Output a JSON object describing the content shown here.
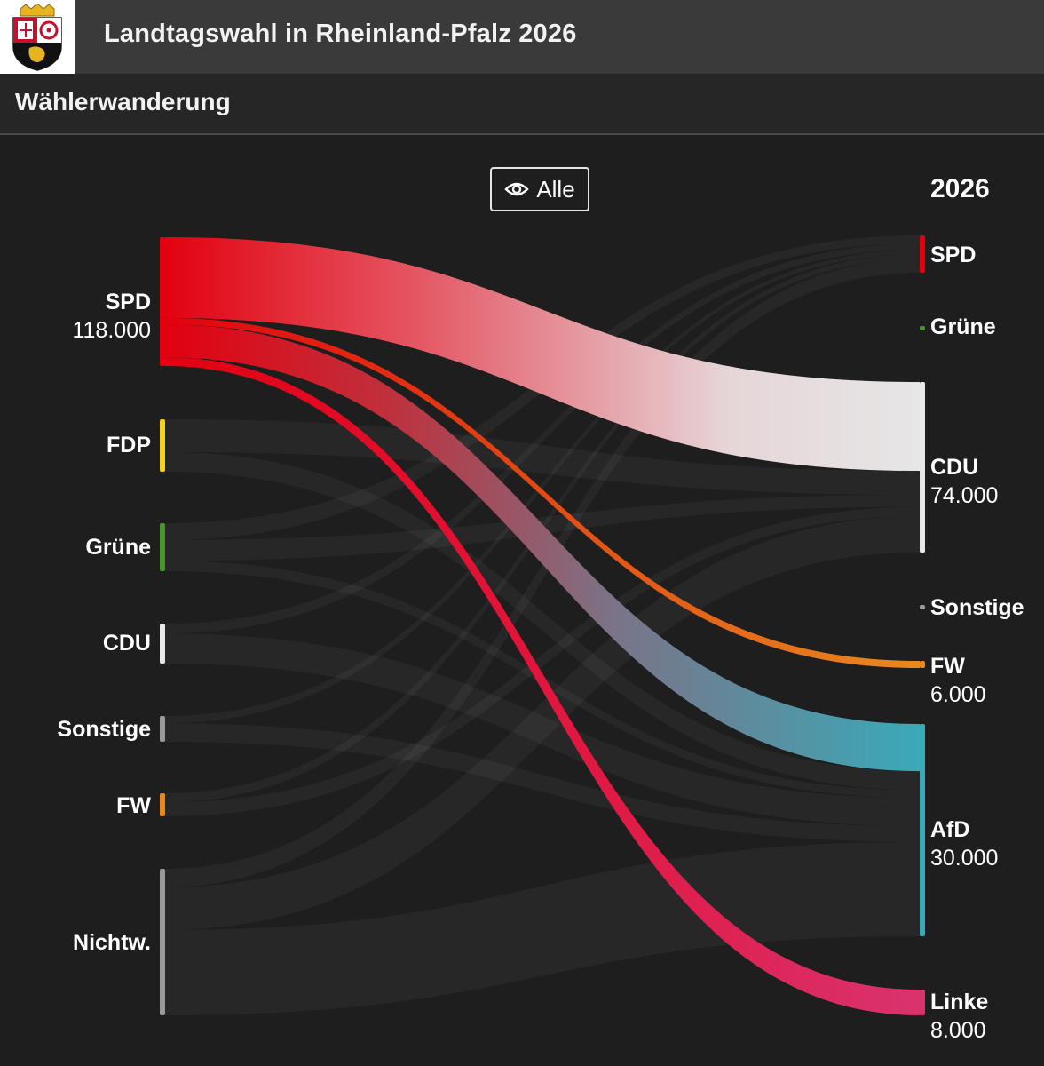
{
  "header": {
    "title": "Landtagswahl in Rheinland-Pfalz 2026",
    "crest_icon": "rheinland-pfalz-coat-of-arms"
  },
  "section": {
    "title": "Wählerwanderung"
  },
  "filter": {
    "label": "Alle",
    "icon": "eye-icon"
  },
  "target_year": "2026",
  "chart_data": {
    "type": "sankey",
    "title": "Wählerwanderung",
    "highlighted_source": "SPD",
    "sources": [
      {
        "name": "SPD",
        "value": 118000,
        "value_label": "118.000",
        "color": "#e3000f"
      },
      {
        "name": "FDP",
        "value": 48000,
        "value_label": "",
        "color": "#f5d21b"
      },
      {
        "name": "Grüne",
        "value": 45000,
        "value_label": "",
        "color": "#46962b"
      },
      {
        "name": "CDU",
        "value": 38000,
        "value_label": "",
        "color": "#e8e8e8"
      },
      {
        "name": "Sonstige",
        "value": 24000,
        "value_label": "",
        "color": "#9a9a9a"
      },
      {
        "name": "FW",
        "value": 20000,
        "value_label": "",
        "color": "#e8891f"
      },
      {
        "name": "Nichtw.",
        "value": 135000,
        "value_label": "",
        "color": "#9a9a9a"
      }
    ],
    "targets": [
      {
        "name": "SPD",
        "value": 36000,
        "value_label": "",
        "color": "#e3000f"
      },
      {
        "name": "Grüne",
        "value": 2000,
        "value_label": "",
        "color": "#46962b"
      },
      {
        "name": "CDU",
        "value": 74000,
        "value_label": "74.000",
        "color": "#e8e8e8"
      },
      {
        "name": "Sonstige",
        "value": 2000,
        "value_label": "",
        "color": "#9a9a9a"
      },
      {
        "name": "FW",
        "value": 6000,
        "value_label": "6.000",
        "color": "#e8891f"
      },
      {
        "name": "AfD",
        "value": 30000,
        "value_label": "30.000",
        "color": "#3aa9b8"
      },
      {
        "name": "Linke",
        "value": 8000,
        "value_label": "8.000",
        "color": "#d9336e"
      }
    ],
    "flows": [
      {
        "from": "SPD",
        "to": "CDU",
        "value": 74000
      },
      {
        "from": "SPD",
        "to": "FW",
        "value": 6000
      },
      {
        "from": "SPD",
        "to": "AfD",
        "value": 30000
      },
      {
        "from": "SPD",
        "to": "Linke",
        "value": 8000
      },
      {
        "from": "FDP",
        "to": "CDU",
        "value": 20000
      },
      {
        "from": "FDP",
        "to": "AfD",
        "value": 12000
      },
      {
        "from": "Grüne",
        "to": "CDU",
        "value": 10000
      },
      {
        "from": "Grüne",
        "to": "SPD",
        "value": 8000
      },
      {
        "from": "Grüne",
        "to": "AfD",
        "value": 5000
      },
      {
        "from": "CDU",
        "to": "AfD",
        "value": 18000
      },
      {
        "from": "CDU",
        "to": "SPD",
        "value": 6000
      },
      {
        "from": "Sonstige",
        "to": "AfD",
        "value": 10000
      },
      {
        "from": "Sonstige",
        "to": "SPD",
        "value": 4000
      },
      {
        "from": "FW",
        "to": "CDU",
        "value": 8000
      },
      {
        "from": "FW",
        "to": "SPD",
        "value": 5000
      },
      {
        "from": "Nichtw.",
        "to": "AfD",
        "value": 60000
      },
      {
        "from": "Nichtw.",
        "to": "CDU",
        "value": 30000
      },
      {
        "from": "Nichtw.",
        "to": "SPD",
        "value": 13000
      }
    ]
  }
}
